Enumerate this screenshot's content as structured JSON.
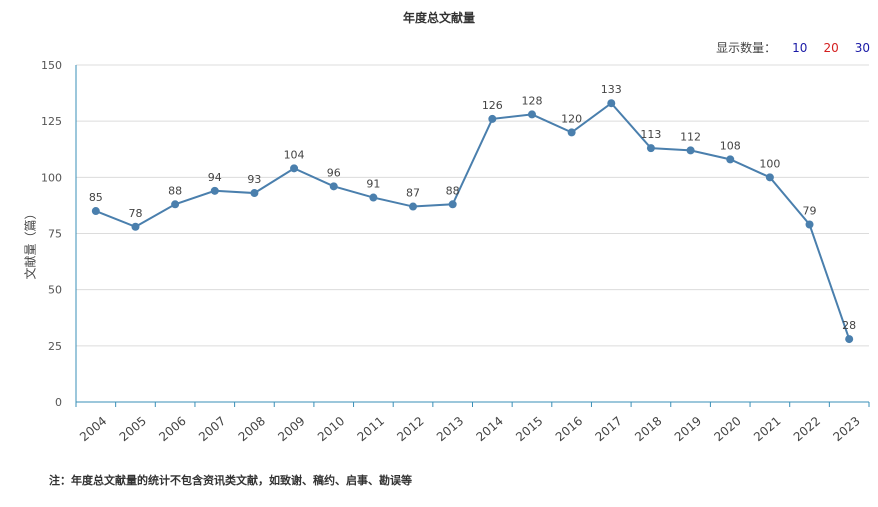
{
  "header": {
    "title": "年度总文献量"
  },
  "count_selector": {
    "label": "显示数量：",
    "options": [
      {
        "label": "10",
        "color": "#1a1aa6"
      },
      {
        "label": "20",
        "color": "#d41f1f"
      },
      {
        "label": "30",
        "color": "#1a1aa6"
      }
    ]
  },
  "footnote": "注：年度总文献量的统计不包含资讯类文献，如致谢、稿约、启事、勘误等",
  "chart_data": {
    "type": "line",
    "title": "年度总文献量",
    "xlabel": "",
    "ylabel": "文献量（篇）",
    "ylim": [
      0,
      150
    ],
    "yticks": [
      0,
      25,
      50,
      75,
      100,
      125,
      150
    ],
    "x": [
      "2004",
      "2005",
      "2006",
      "2007",
      "2008",
      "2009",
      "2010",
      "2011",
      "2012",
      "2013",
      "2014",
      "2015",
      "2016",
      "2017",
      "2018",
      "2019",
      "2020",
      "2021",
      "2022",
      "2023"
    ],
    "series": [
      {
        "values": [
          85,
          78,
          88,
          94,
          93,
          104,
          96,
          91,
          87,
          88,
          126,
          128,
          120,
          133,
          113,
          112,
          108,
          100,
          79,
          28
        ],
        "color": "#4a7fad"
      }
    ],
    "grid": true,
    "data_labels": true
  }
}
